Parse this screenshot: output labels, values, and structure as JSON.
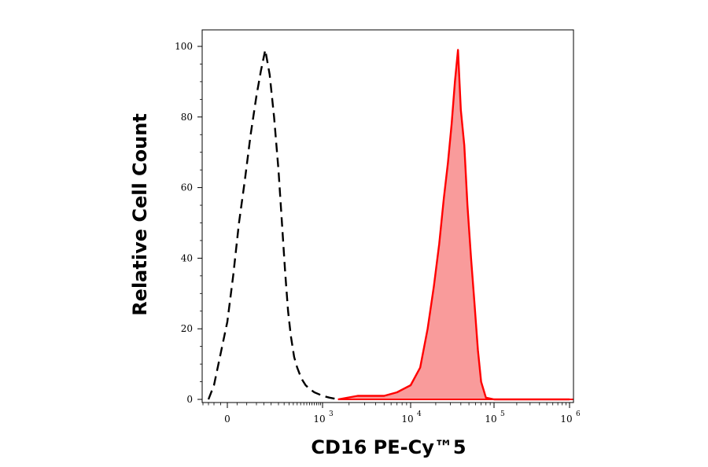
{
  "chart_data": {
    "type": "area",
    "title": "",
    "xlabel": "CD16 PE-Cy™5",
    "ylabel": "Relative Cell Count",
    "x_scale": "biexponential",
    "xlim": [
      -200,
      1000000
    ],
    "ylim": [
      0,
      100
    ],
    "y_ticks": [
      0,
      20,
      40,
      60,
      80,
      100
    ],
    "x_ticks": [
      {
        "value": 0,
        "base": "0",
        "exp": ""
      },
      {
        "value": 1000,
        "base": "10",
        "exp": "3"
      },
      {
        "value": 10000,
        "base": "10",
        "exp": "4"
      },
      {
        "value": 100000,
        "base": "10",
        "exp": "5"
      },
      {
        "value": 1000000,
        "base": "10",
        "exp": "6"
      }
    ],
    "grid": false,
    "series": [
      {
        "style": "dashed-line",
        "color": "#000000",
        "x": [
          -150,
          -100,
          -50,
          0,
          30,
          60,
          90,
          120,
          150,
          180,
          210,
          240,
          270,
          300,
          330,
          360,
          390,
          420,
          460,
          500,
          560,
          630,
          700,
          800,
          900,
          1000,
          1200,
          1500
        ],
        "y": [
          0,
          4,
          13,
          22,
          35,
          50,
          62,
          75,
          86,
          93,
          99,
          92,
          80,
          65,
          50,
          36,
          25,
          18,
          12,
          9,
          6,
          4,
          3,
          2,
          1.5,
          1,
          0.5,
          0
        ]
      },
      {
        "style": "filled",
        "color": "#ff0000",
        "fill": "#f99b9b",
        "x": [
          1500,
          2500,
          5000,
          7000,
          10000,
          13000,
          16000,
          19000,
          22000,
          25000,
          28000,
          31000,
          34000,
          37000,
          40000,
          44000,
          48000,
          53000,
          58000,
          64000,
          70000,
          80000,
          100000,
          1000000
        ],
        "y": [
          0,
          1,
          1,
          2,
          4,
          9,
          20,
          32,
          44,
          57,
          67,
          78,
          90,
          99,
          82,
          72,
          55,
          40,
          28,
          14,
          5,
          0.5,
          0,
          0
        ]
      }
    ]
  }
}
